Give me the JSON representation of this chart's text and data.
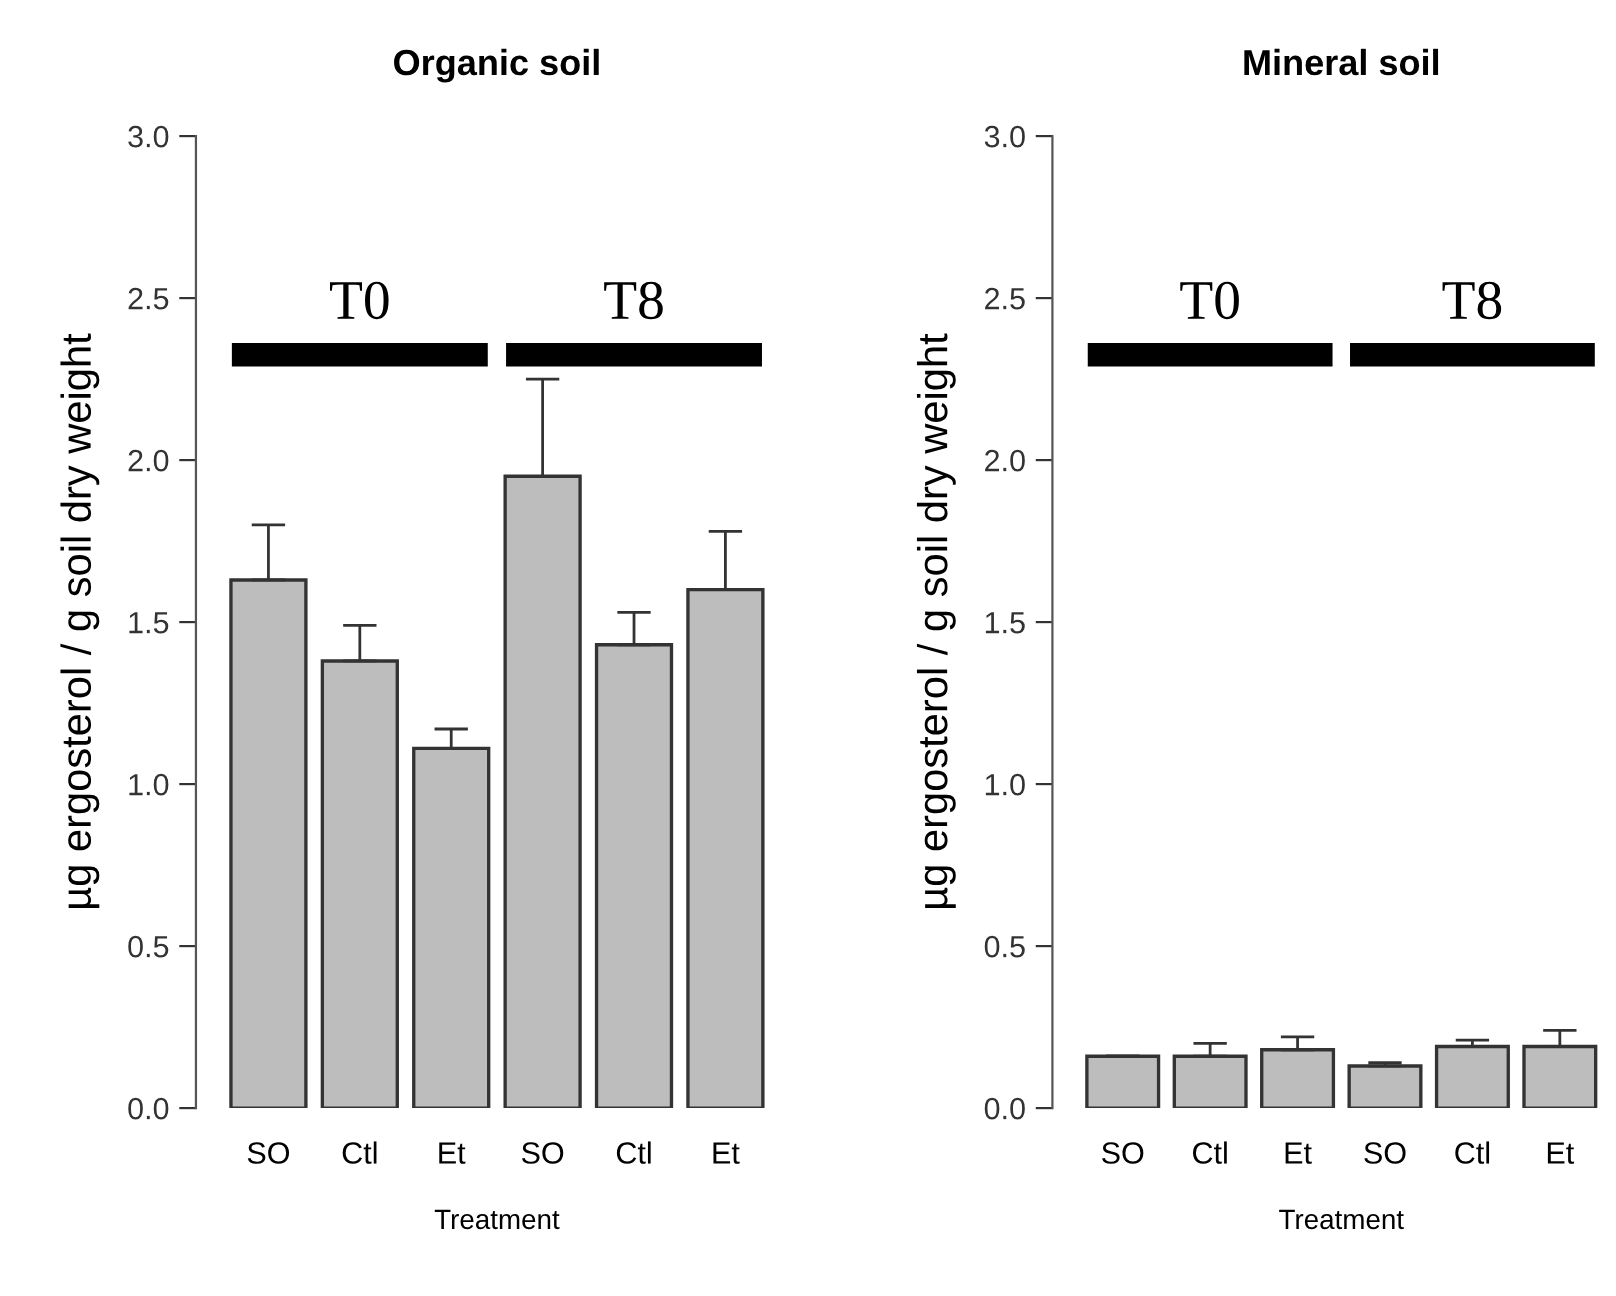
{
  "chart_data": [
    {
      "type": "bar",
      "title": "Organic soil",
      "xlabel": "Treatment",
      "ylabel": "µg ergosterol / g soil dry weight",
      "categories": [
        "SO",
        "Ctl",
        "Et",
        "SO",
        "Ctl",
        "Et"
      ],
      "values": [
        1.63,
        1.38,
        1.11,
        1.95,
        1.43,
        1.6
      ],
      "errors": [
        [
          1.63,
          1.8
        ],
        [
          1.38,
          1.49
        ],
        [
          1.11,
          1.17
        ],
        [
          1.95,
          2.25
        ],
        [
          1.43,
          1.53
        ],
        [
          1.6,
          1.78
        ]
      ],
      "color": "#bdbdbd",
      "ylim": [
        0,
        3
      ],
      "yticks": [
        {
          "value": 0,
          "label": "0.0"
        },
        {
          "value": 0.5,
          "label": "0.5"
        },
        {
          "value": 1,
          "label": "1.0"
        },
        {
          "value": 1.5,
          "label": "1.5"
        },
        {
          "value": 2,
          "label": "2.0"
        },
        {
          "value": 2.5,
          "label": "2.5"
        },
        {
          "value": 3,
          "label": "3.0"
        }
      ],
      "grid": false,
      "annotations": [
        "T0",
        "T8"
      ]
    },
    {
      "type": "bar",
      "title": "Mineral soil",
      "xlabel": "Treatment",
      "ylabel": "µg ergosterol / g soil dry weight",
      "categories": [
        "SO",
        "Ctl",
        "Et",
        "SO",
        "Ctl",
        "Et"
      ],
      "values": [
        0.16,
        0.16,
        0.18,
        0.13,
        0.19,
        0.19
      ],
      "errors": [
        [
          0.16,
          0.16
        ],
        [
          0.16,
          0.2
        ],
        [
          0.18,
          0.22
        ],
        [
          0.13,
          0.14
        ],
        [
          0.19,
          0.21
        ],
        [
          0.19,
          0.24
        ]
      ],
      "color": "#bdbdbd",
      "ylim": [
        0,
        3
      ],
      "yticks": [
        {
          "value": 0,
          "label": "0.0"
        },
        {
          "value": 0.5,
          "label": "0.5"
        },
        {
          "value": 1,
          "label": "1.0"
        },
        {
          "value": 1.5,
          "label": "1.5"
        },
        {
          "value": 2,
          "label": "2.0"
        },
        {
          "value": 2.5,
          "label": "2.5"
        },
        {
          "value": 3,
          "label": "3.0"
        }
      ],
      "grid": false,
      "annotations": [
        "T0",
        "T8"
      ]
    }
  ]
}
